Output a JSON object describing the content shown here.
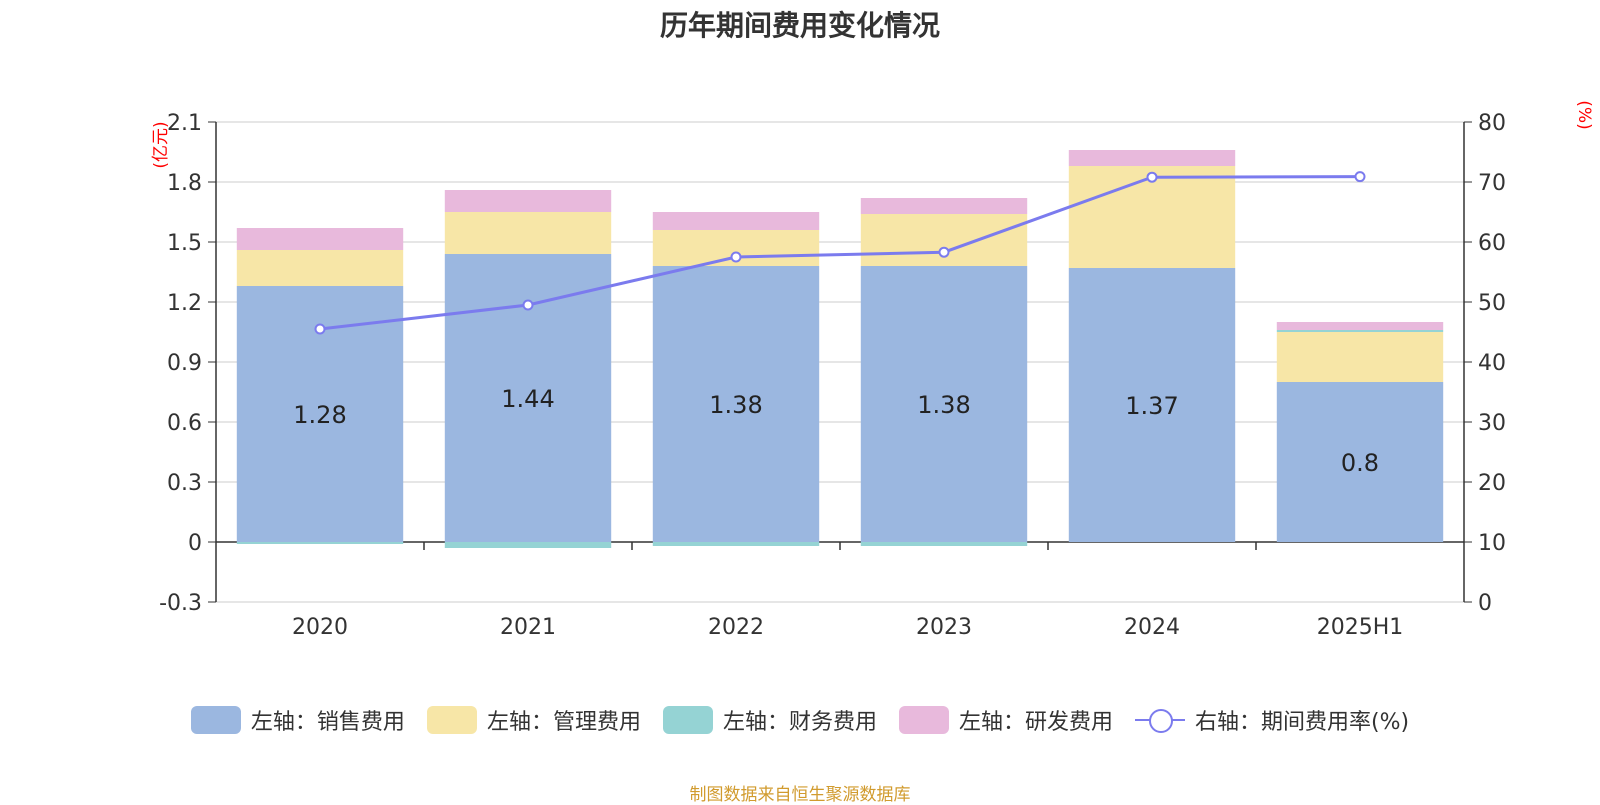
{
  "chart_data": {
    "type": "bar",
    "title": "历年期间费用变化情况",
    "categories": [
      "2020",
      "2021",
      "2022",
      "2023",
      "2024",
      "2025H1"
    ],
    "series": [
      {
        "name": "左轴：销售费用",
        "axis": "left",
        "type": "bar",
        "color": "#9bb7e0",
        "values": [
          1.28,
          1.44,
          1.38,
          1.38,
          1.37,
          0.8
        ]
      },
      {
        "name": "左轴：管理费用",
        "axis": "left",
        "type": "bar",
        "color": "#f7e6a7",
        "values": [
          0.18,
          0.21,
          0.18,
          0.26,
          0.51,
          0.25
        ]
      },
      {
        "name": "左轴：财务费用",
        "axis": "left",
        "type": "bar",
        "color": "#95d3d4",
        "values": [
          -0.01,
          -0.03,
          -0.02,
          -0.02,
          0.0,
          0.01
        ]
      },
      {
        "name": "左轴：研发费用",
        "axis": "left",
        "type": "bar",
        "color": "#e8b9dc",
        "values": [
          0.11,
          0.11,
          0.09,
          0.08,
          0.08,
          0.04
        ]
      },
      {
        "name": "右轴：期间费用率(%)",
        "axis": "right",
        "type": "line",
        "color": "#7b7bee",
        "values": [
          45.5,
          49.5,
          57.5,
          58.3,
          70.8,
          70.9
        ]
      }
    ],
    "data_labels": [
      "1.28",
      "1.44",
      "1.38",
      "1.38",
      "1.37",
      "0.8"
    ],
    "y_left": {
      "unit": "(亿元)",
      "ylim": [
        -0.3,
        2.1
      ],
      "ticks": [
        "-0.3",
        "0",
        "0.3",
        "0.6",
        "0.9",
        "1.2",
        "1.5",
        "1.8",
        "2.1"
      ]
    },
    "y_right": {
      "unit": "(%)",
      "ylim": [
        0,
        80
      ],
      "ticks": [
        "0",
        "10",
        "20",
        "30",
        "40",
        "50",
        "60",
        "70",
        "80"
      ]
    },
    "grid": true,
    "legend_position": "bottom"
  },
  "source": "制图数据来自恒生聚源数据库"
}
